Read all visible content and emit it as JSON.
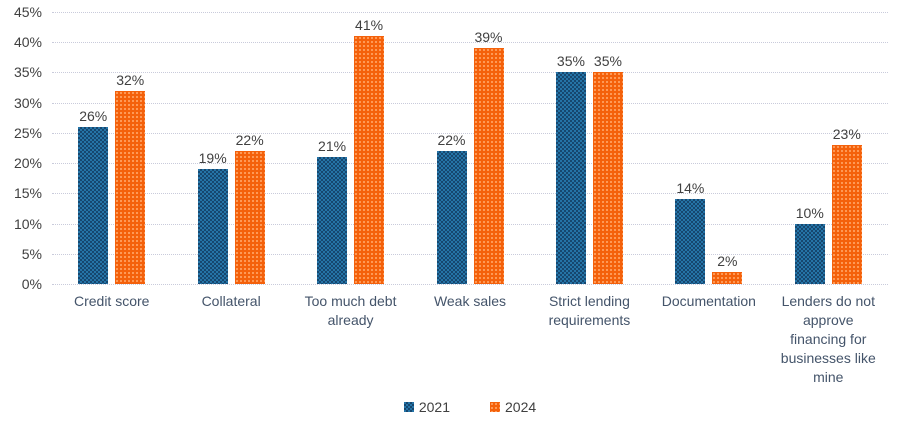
{
  "chart_data": {
    "type": "bar",
    "title": "",
    "xlabel": "",
    "ylabel": "",
    "categories": [
      "Credit score",
      "Collateral",
      "Too much debt\nalready",
      "Weak sales",
      "Strict lending\nrequirements",
      "Documentation",
      "Lenders do not\napprove\nfinancing for\nbusinesses like\nmine"
    ],
    "series": [
      {
        "name": "2021",
        "color_base": "#16476F",
        "color_alt": "#2574A7",
        "pattern": "checker",
        "values": [
          26,
          19,
          21,
          22,
          35,
          14,
          10
        ]
      },
      {
        "name": "2024",
        "color_base": "#F4610B",
        "color_alt": "#FF9E5C",
        "pattern": "dots",
        "values": [
          32,
          22,
          41,
          39,
          35,
          2,
          23
        ]
      }
    ],
    "ylim": [
      0,
      45
    ],
    "ytick_step": 5,
    "ytick_suffix": "%",
    "data_label_suffix": "%",
    "grid": "horizontal-dotted",
    "legend_position": "bottom-center",
    "legend_entries": [
      "2021",
      "2024"
    ]
  },
  "colors": {
    "background": "#FFFFFF",
    "grid": "#C9CBDB",
    "tick_label": "#404040",
    "category_label": "#44546A",
    "data_label": "#404040",
    "legend_label": "#404040"
  }
}
